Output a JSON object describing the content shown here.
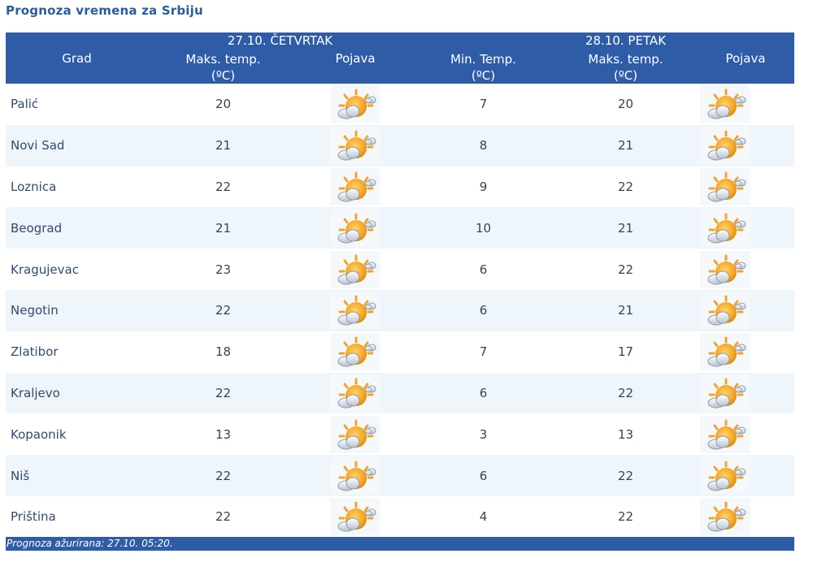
{
  "page_title": "Prognoza vremena za Srbiju",
  "header": {
    "grad": "Grad",
    "day1_date": "27.10. ČETVRTAK",
    "day1_max_line1": "Maks. temp.",
    "day1_max_line2": "(ºC)",
    "day1_phen": "Pojava",
    "day2_min_line1": "Min. Temp.",
    "day2_min_line2": "(ºC)",
    "day2_date": "28.10. PETAK",
    "day2_max_line1": "Maks. temp.",
    "day2_max_line2": "(ºC)",
    "day2_phen": "Pojava"
  },
  "rows": [
    {
      "city": "Palić",
      "max1": "20",
      "min2": "7",
      "max2": "20"
    },
    {
      "city": "Novi Sad",
      "max1": "21",
      "min2": "8",
      "max2": "21"
    },
    {
      "city": "Loznica",
      "max1": "22",
      "min2": "9",
      "max2": "22"
    },
    {
      "city": "Beograd",
      "max1": "21",
      "min2": "10",
      "max2": "21"
    },
    {
      "city": "Kragujevac",
      "max1": "23",
      "min2": "6",
      "max2": "22"
    },
    {
      "city": "Negotin",
      "max1": "22",
      "min2": "6",
      "max2": "21"
    },
    {
      "city": "Zlatibor",
      "max1": "18",
      "min2": "7",
      "max2": "17"
    },
    {
      "city": "Kraljevo",
      "max1": "22",
      "min2": "6",
      "max2": "22"
    },
    {
      "city": "Kopaonik",
      "max1": "13",
      "min2": "3",
      "max2": "13"
    },
    {
      "city": "Niš",
      "max1": "22",
      "min2": "6",
      "max2": "22"
    },
    {
      "city": "Priština",
      "max1": "22",
      "min2": "4",
      "max2": "22"
    }
  ],
  "weather_icon": "partly-cloudy-icon",
  "footer": "Prognoza ažurirana:  27.10. 05:20.",
  "colors": {
    "header_bg": "#2f5ca6",
    "title": "#2b5c9c",
    "row_alt": "#eef6fb"
  }
}
